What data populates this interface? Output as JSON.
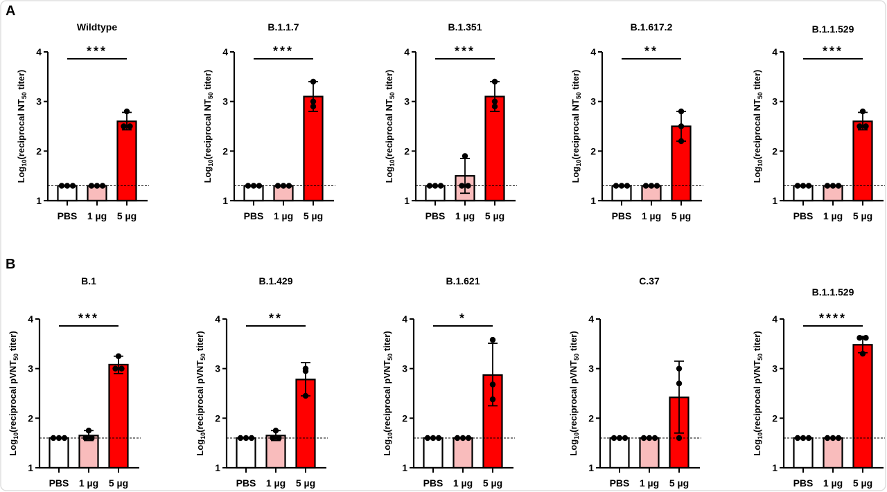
{
  "chart_data": [
    {
      "type": "bar",
      "panel": "A",
      "title": "Wildtype",
      "categories": [
        "PBS",
        "1 µg",
        "5 µg"
      ],
      "ylim": [
        1,
        4
      ],
      "yticks": [
        "1",
        "2",
        "3",
        "4"
      ],
      "ylabel": [
        "Log",
        "10",
        "(reciprocal NT",
        "50",
        " titer)"
      ],
      "lod": 1.3,
      "colors": [
        "#ffffff",
        "#f9bcbc",
        "#ff0000"
      ],
      "values": [
        1.3,
        1.3,
        2.6
      ],
      "points": [
        [
          1.3,
          1.3,
          1.3
        ],
        [
          1.3,
          1.3,
          1.3
        ],
        [
          2.8,
          2.5,
          2.5
        ]
      ],
      "error": [
        null,
        null,
        [
          2.43,
          2.78
        ]
      ],
      "significance": "***"
    },
    {
      "type": "bar",
      "panel": "",
      "title": "B.1.1.7",
      "categories": [
        "PBS",
        "1 µg",
        "5 µg"
      ],
      "ylim": [
        1,
        4
      ],
      "yticks": [
        "1",
        "2",
        "3",
        "4"
      ],
      "ylabel": [
        "Log",
        "10",
        "(reciprocal NT",
        "50",
        " titer)"
      ],
      "lod": 1.3,
      "colors": [
        "#ffffff",
        "#f9bcbc",
        "#ff0000"
      ],
      "values": [
        1.3,
        1.3,
        3.1
      ],
      "points": [
        [
          1.3,
          1.3,
          1.3
        ],
        [
          1.3,
          1.3,
          1.3
        ],
        [
          3.4,
          3.0,
          2.9
        ]
      ],
      "error": [
        null,
        null,
        [
          2.8,
          3.4
        ]
      ],
      "significance": "***"
    },
    {
      "type": "bar",
      "panel": "",
      "title": "B.1.351",
      "categories": [
        "PBS",
        "1 µg",
        "5 µg"
      ],
      "ylim": [
        1,
        4
      ],
      "yticks": [
        "1",
        "2",
        "3",
        "4"
      ],
      "ylabel": [
        "Log",
        "10",
        "(reciprocal NT",
        "50",
        " titer)"
      ],
      "lod": 1.3,
      "colors": [
        "#ffffff",
        "#f9bcbc",
        "#ff0000"
      ],
      "values": [
        1.3,
        1.5,
        3.1
      ],
      "points": [
        [
          1.3,
          1.3,
          1.3
        ],
        [
          1.9,
          1.3,
          1.3
        ],
        [
          3.4,
          3.0,
          2.9
        ]
      ],
      "error": [
        null,
        [
          1.15,
          1.85
        ],
        [
          2.8,
          3.4
        ]
      ],
      "significance": "***"
    },
    {
      "type": "bar",
      "panel": "",
      "title": "B.1.617.2",
      "categories": [
        "PBS",
        "1 µg",
        "5 µg"
      ],
      "ylim": [
        1,
        4
      ],
      "yticks": [
        "1",
        "2",
        "3",
        "4"
      ],
      "ylabel": [
        "Log",
        "10",
        "(reciprocal NT",
        "50",
        " titer)"
      ],
      "lod": 1.3,
      "colors": [
        "#ffffff",
        "#f9bcbc",
        "#ff0000"
      ],
      "values": [
        1.3,
        1.3,
        2.5
      ],
      "points": [
        [
          1.3,
          1.3,
          1.3
        ],
        [
          1.3,
          1.3,
          1.3
        ],
        [
          2.8,
          2.5,
          2.2
        ]
      ],
      "error": [
        null,
        null,
        [
          2.2,
          2.8
        ]
      ],
      "significance": "**"
    },
    {
      "type": "bar",
      "panel": "",
      "title": "B.1.1.529",
      "categories": [
        "PBS",
        "1 µg",
        "5 µg"
      ],
      "ylim": [
        1,
        4
      ],
      "yticks": [
        "1",
        "2",
        "3",
        "4"
      ],
      "ylabel": [
        "Log",
        "10",
        "(reciprocal NT",
        "50",
        " titer)"
      ],
      "lod": 1.3,
      "colors": [
        "#ffffff",
        "#f9bcbc",
        "#ff0000"
      ],
      "values": [
        1.3,
        1.3,
        2.6
      ],
      "points": [
        [
          1.3,
          1.3,
          1.3
        ],
        [
          1.3,
          1.3,
          1.3
        ],
        [
          2.8,
          2.5,
          2.5
        ]
      ],
      "error": [
        null,
        null,
        [
          2.43,
          2.78
        ]
      ],
      "significance": "***"
    },
    {
      "type": "bar",
      "panel": "B",
      "title": "B.1",
      "categories": [
        "PBS",
        "1 µg",
        "5 µg"
      ],
      "ylim": [
        1,
        4
      ],
      "yticks": [
        "1",
        "2",
        "3",
        "4"
      ],
      "ylabel": [
        "Log",
        "10",
        "(reciprocal pVNT",
        "50",
        " titer)"
      ],
      "lod": 1.6,
      "colors": [
        "#ffffff",
        "#f9bcbc",
        "#ff0000"
      ],
      "values": [
        1.6,
        1.65,
        3.08
      ],
      "points": [
        [
          1.6,
          1.6,
          1.6
        ],
        [
          1.75,
          1.6,
          1.6
        ],
        [
          3.25,
          3.0,
          3.0
        ]
      ],
      "error": [
        null,
        [
          1.55,
          1.75
        ],
        [
          2.9,
          3.25
        ]
      ],
      "significance": "***"
    },
    {
      "type": "bar",
      "panel": "",
      "title": "B.1.429",
      "categories": [
        "PBS",
        "1 µg",
        "5 µg"
      ],
      "ylim": [
        1,
        4
      ],
      "yticks": [
        "1",
        "2",
        "3",
        "4"
      ],
      "ylabel": [
        "Log",
        "10",
        "(reciprocal pVNT",
        "50",
        " titer)"
      ],
      "lod": 1.6,
      "colors": [
        "#ffffff",
        "#f9bcbc",
        "#ff0000"
      ],
      "values": [
        1.6,
        1.65,
        2.78
      ],
      "points": [
        [
          1.6,
          1.6,
          1.6
        ],
        [
          1.75,
          1.6,
          1.6
        ],
        [
          3.0,
          2.95,
          2.45
        ]
      ],
      "error": [
        null,
        [
          1.55,
          1.75
        ],
        [
          2.45,
          3.12
        ]
      ],
      "significance": "**"
    },
    {
      "type": "bar",
      "panel": "",
      "title": "B.1.621",
      "categories": [
        "PBS",
        "1 µg",
        "5 µg"
      ],
      "ylim": [
        1,
        4
      ],
      "yticks": [
        "1",
        "2",
        "3",
        "4"
      ],
      "ylabel": [
        "Log",
        "10",
        "(reciprocal pVNT",
        "50",
        " titer)"
      ],
      "lod": 1.6,
      "colors": [
        "#ffffff",
        "#f9bcbc",
        "#ff0000"
      ],
      "values": [
        1.6,
        1.6,
        2.87
      ],
      "points": [
        [
          1.6,
          1.6,
          1.6
        ],
        [
          1.6,
          1.6,
          1.6
        ],
        [
          3.58,
          2.68,
          2.38
        ]
      ],
      "error": [
        null,
        null,
        [
          2.25,
          3.51
        ]
      ],
      "significance": "*"
    },
    {
      "type": "bar",
      "panel": "",
      "title": "C.37",
      "categories": [
        "PBS",
        "1 µg",
        "5 µg"
      ],
      "ylim": [
        1,
        4
      ],
      "yticks": [
        "1",
        "2",
        "3",
        "4"
      ],
      "ylabel": [
        "Log",
        "10",
        "(reciprocal pVNT",
        "50",
        " titer)"
      ],
      "lod": 1.6,
      "colors": [
        "#ffffff",
        "#f9bcbc",
        "#ff0000"
      ],
      "values": [
        1.6,
        1.6,
        2.42
      ],
      "points": [
        [
          1.6,
          1.6,
          1.6
        ],
        [
          1.6,
          1.6,
          1.6
        ],
        [
          3.0,
          2.7,
          1.6
        ]
      ],
      "error": [
        null,
        null,
        [
          1.7,
          3.15
        ]
      ],
      "significance": ""
    },
    {
      "type": "bar",
      "panel": "",
      "title": "B.1.1.529",
      "categories": [
        "PBS",
        "1 µg",
        "5 µg"
      ],
      "ylim": [
        1,
        4
      ],
      "yticks": [
        "1",
        "2",
        "3",
        "4"
      ],
      "ylabel": [
        "Log",
        "10",
        "(reciprocal pVNT",
        "50",
        " titer)"
      ],
      "lod": 1.6,
      "colors": [
        "#ffffff",
        "#f9bcbc",
        "#ff0000"
      ],
      "values": [
        1.6,
        1.6,
        3.48
      ],
      "points": [
        [
          1.6,
          1.6,
          1.6
        ],
        [
          1.6,
          1.6,
          1.6
        ],
        [
          3.62,
          3.62,
          3.3
        ]
      ],
      "error": [
        null,
        null,
        [
          3.32,
          3.65
        ]
      ],
      "significance": "****"
    }
  ]
}
